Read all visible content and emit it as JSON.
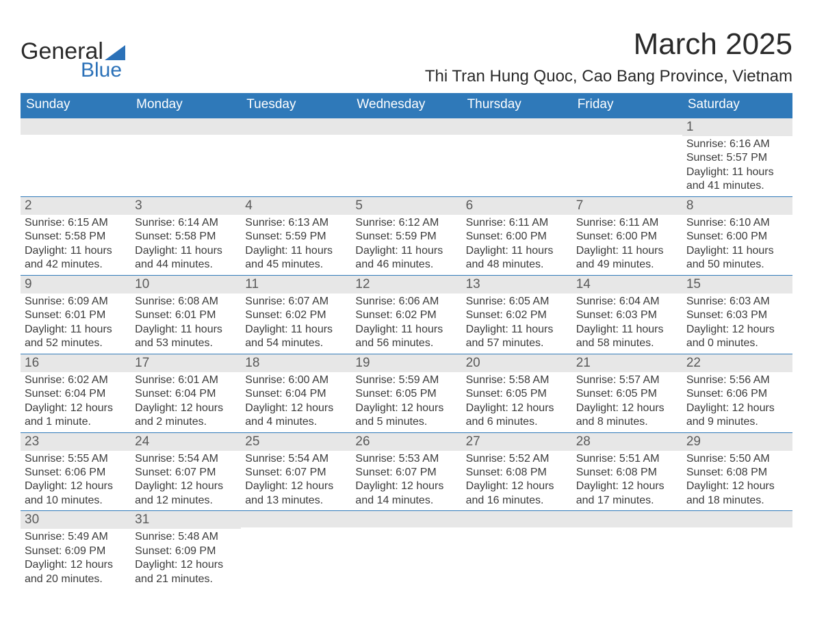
{
  "logo": {
    "text_top": "General",
    "text_bottom": "Blue",
    "triangle_color": "#2b71b8"
  },
  "title": "March 2025",
  "location": "Thi Tran Hung Quoc, Cao Bang Province, Vietnam",
  "header_bg": "#2f79b9",
  "band_bg": "#e7e7e7",
  "weekdays": [
    "Sunday",
    "Monday",
    "Tuesday",
    "Wednesday",
    "Thursday",
    "Friday",
    "Saturday"
  ],
  "weeks": [
    [
      null,
      null,
      null,
      null,
      null,
      null,
      {
        "n": "1",
        "sr": "Sunrise: 6:16 AM",
        "ss": "Sunset: 5:57 PM",
        "d1": "Daylight: 11 hours",
        "d2": "and 41 minutes."
      }
    ],
    [
      {
        "n": "2",
        "sr": "Sunrise: 6:15 AM",
        "ss": "Sunset: 5:58 PM",
        "d1": "Daylight: 11 hours",
        "d2": "and 42 minutes."
      },
      {
        "n": "3",
        "sr": "Sunrise: 6:14 AM",
        "ss": "Sunset: 5:58 PM",
        "d1": "Daylight: 11 hours",
        "d2": "and 44 minutes."
      },
      {
        "n": "4",
        "sr": "Sunrise: 6:13 AM",
        "ss": "Sunset: 5:59 PM",
        "d1": "Daylight: 11 hours",
        "d2": "and 45 minutes."
      },
      {
        "n": "5",
        "sr": "Sunrise: 6:12 AM",
        "ss": "Sunset: 5:59 PM",
        "d1": "Daylight: 11 hours",
        "d2": "and 46 minutes."
      },
      {
        "n": "6",
        "sr": "Sunrise: 6:11 AM",
        "ss": "Sunset: 6:00 PM",
        "d1": "Daylight: 11 hours",
        "d2": "and 48 minutes."
      },
      {
        "n": "7",
        "sr": "Sunrise: 6:11 AM",
        "ss": "Sunset: 6:00 PM",
        "d1": "Daylight: 11 hours",
        "d2": "and 49 minutes."
      },
      {
        "n": "8",
        "sr": "Sunrise: 6:10 AM",
        "ss": "Sunset: 6:00 PM",
        "d1": "Daylight: 11 hours",
        "d2": "and 50 minutes."
      }
    ],
    [
      {
        "n": "9",
        "sr": "Sunrise: 6:09 AM",
        "ss": "Sunset: 6:01 PM",
        "d1": "Daylight: 11 hours",
        "d2": "and 52 minutes."
      },
      {
        "n": "10",
        "sr": "Sunrise: 6:08 AM",
        "ss": "Sunset: 6:01 PM",
        "d1": "Daylight: 11 hours",
        "d2": "and 53 minutes."
      },
      {
        "n": "11",
        "sr": "Sunrise: 6:07 AM",
        "ss": "Sunset: 6:02 PM",
        "d1": "Daylight: 11 hours",
        "d2": "and 54 minutes."
      },
      {
        "n": "12",
        "sr": "Sunrise: 6:06 AM",
        "ss": "Sunset: 6:02 PM",
        "d1": "Daylight: 11 hours",
        "d2": "and 56 minutes."
      },
      {
        "n": "13",
        "sr": "Sunrise: 6:05 AM",
        "ss": "Sunset: 6:02 PM",
        "d1": "Daylight: 11 hours",
        "d2": "and 57 minutes."
      },
      {
        "n": "14",
        "sr": "Sunrise: 6:04 AM",
        "ss": "Sunset: 6:03 PM",
        "d1": "Daylight: 11 hours",
        "d2": "and 58 minutes."
      },
      {
        "n": "15",
        "sr": "Sunrise: 6:03 AM",
        "ss": "Sunset: 6:03 PM",
        "d1": "Daylight: 12 hours",
        "d2": "and 0 minutes."
      }
    ],
    [
      {
        "n": "16",
        "sr": "Sunrise: 6:02 AM",
        "ss": "Sunset: 6:04 PM",
        "d1": "Daylight: 12 hours",
        "d2": "and 1 minute."
      },
      {
        "n": "17",
        "sr": "Sunrise: 6:01 AM",
        "ss": "Sunset: 6:04 PM",
        "d1": "Daylight: 12 hours",
        "d2": "and 2 minutes."
      },
      {
        "n": "18",
        "sr": "Sunrise: 6:00 AM",
        "ss": "Sunset: 6:04 PM",
        "d1": "Daylight: 12 hours",
        "d2": "and 4 minutes."
      },
      {
        "n": "19",
        "sr": "Sunrise: 5:59 AM",
        "ss": "Sunset: 6:05 PM",
        "d1": "Daylight: 12 hours",
        "d2": "and 5 minutes."
      },
      {
        "n": "20",
        "sr": "Sunrise: 5:58 AM",
        "ss": "Sunset: 6:05 PM",
        "d1": "Daylight: 12 hours",
        "d2": "and 6 minutes."
      },
      {
        "n": "21",
        "sr": "Sunrise: 5:57 AM",
        "ss": "Sunset: 6:05 PM",
        "d1": "Daylight: 12 hours",
        "d2": "and 8 minutes."
      },
      {
        "n": "22",
        "sr": "Sunrise: 5:56 AM",
        "ss": "Sunset: 6:06 PM",
        "d1": "Daylight: 12 hours",
        "d2": "and 9 minutes."
      }
    ],
    [
      {
        "n": "23",
        "sr": "Sunrise: 5:55 AM",
        "ss": "Sunset: 6:06 PM",
        "d1": "Daylight: 12 hours",
        "d2": "and 10 minutes."
      },
      {
        "n": "24",
        "sr": "Sunrise: 5:54 AM",
        "ss": "Sunset: 6:07 PM",
        "d1": "Daylight: 12 hours",
        "d2": "and 12 minutes."
      },
      {
        "n": "25",
        "sr": "Sunrise: 5:54 AM",
        "ss": "Sunset: 6:07 PM",
        "d1": "Daylight: 12 hours",
        "d2": "and 13 minutes."
      },
      {
        "n": "26",
        "sr": "Sunrise: 5:53 AM",
        "ss": "Sunset: 6:07 PM",
        "d1": "Daylight: 12 hours",
        "d2": "and 14 minutes."
      },
      {
        "n": "27",
        "sr": "Sunrise: 5:52 AM",
        "ss": "Sunset: 6:08 PM",
        "d1": "Daylight: 12 hours",
        "d2": "and 16 minutes."
      },
      {
        "n": "28",
        "sr": "Sunrise: 5:51 AM",
        "ss": "Sunset: 6:08 PM",
        "d1": "Daylight: 12 hours",
        "d2": "and 17 minutes."
      },
      {
        "n": "29",
        "sr": "Sunrise: 5:50 AM",
        "ss": "Sunset: 6:08 PM",
        "d1": "Daylight: 12 hours",
        "d2": "and 18 minutes."
      }
    ],
    [
      {
        "n": "30",
        "sr": "Sunrise: 5:49 AM",
        "ss": "Sunset: 6:09 PM",
        "d1": "Daylight: 12 hours",
        "d2": "and 20 minutes."
      },
      {
        "n": "31",
        "sr": "Sunrise: 5:48 AM",
        "ss": "Sunset: 6:09 PM",
        "d1": "Daylight: 12 hours",
        "d2": "and 21 minutes."
      },
      null,
      null,
      null,
      null,
      null
    ]
  ]
}
